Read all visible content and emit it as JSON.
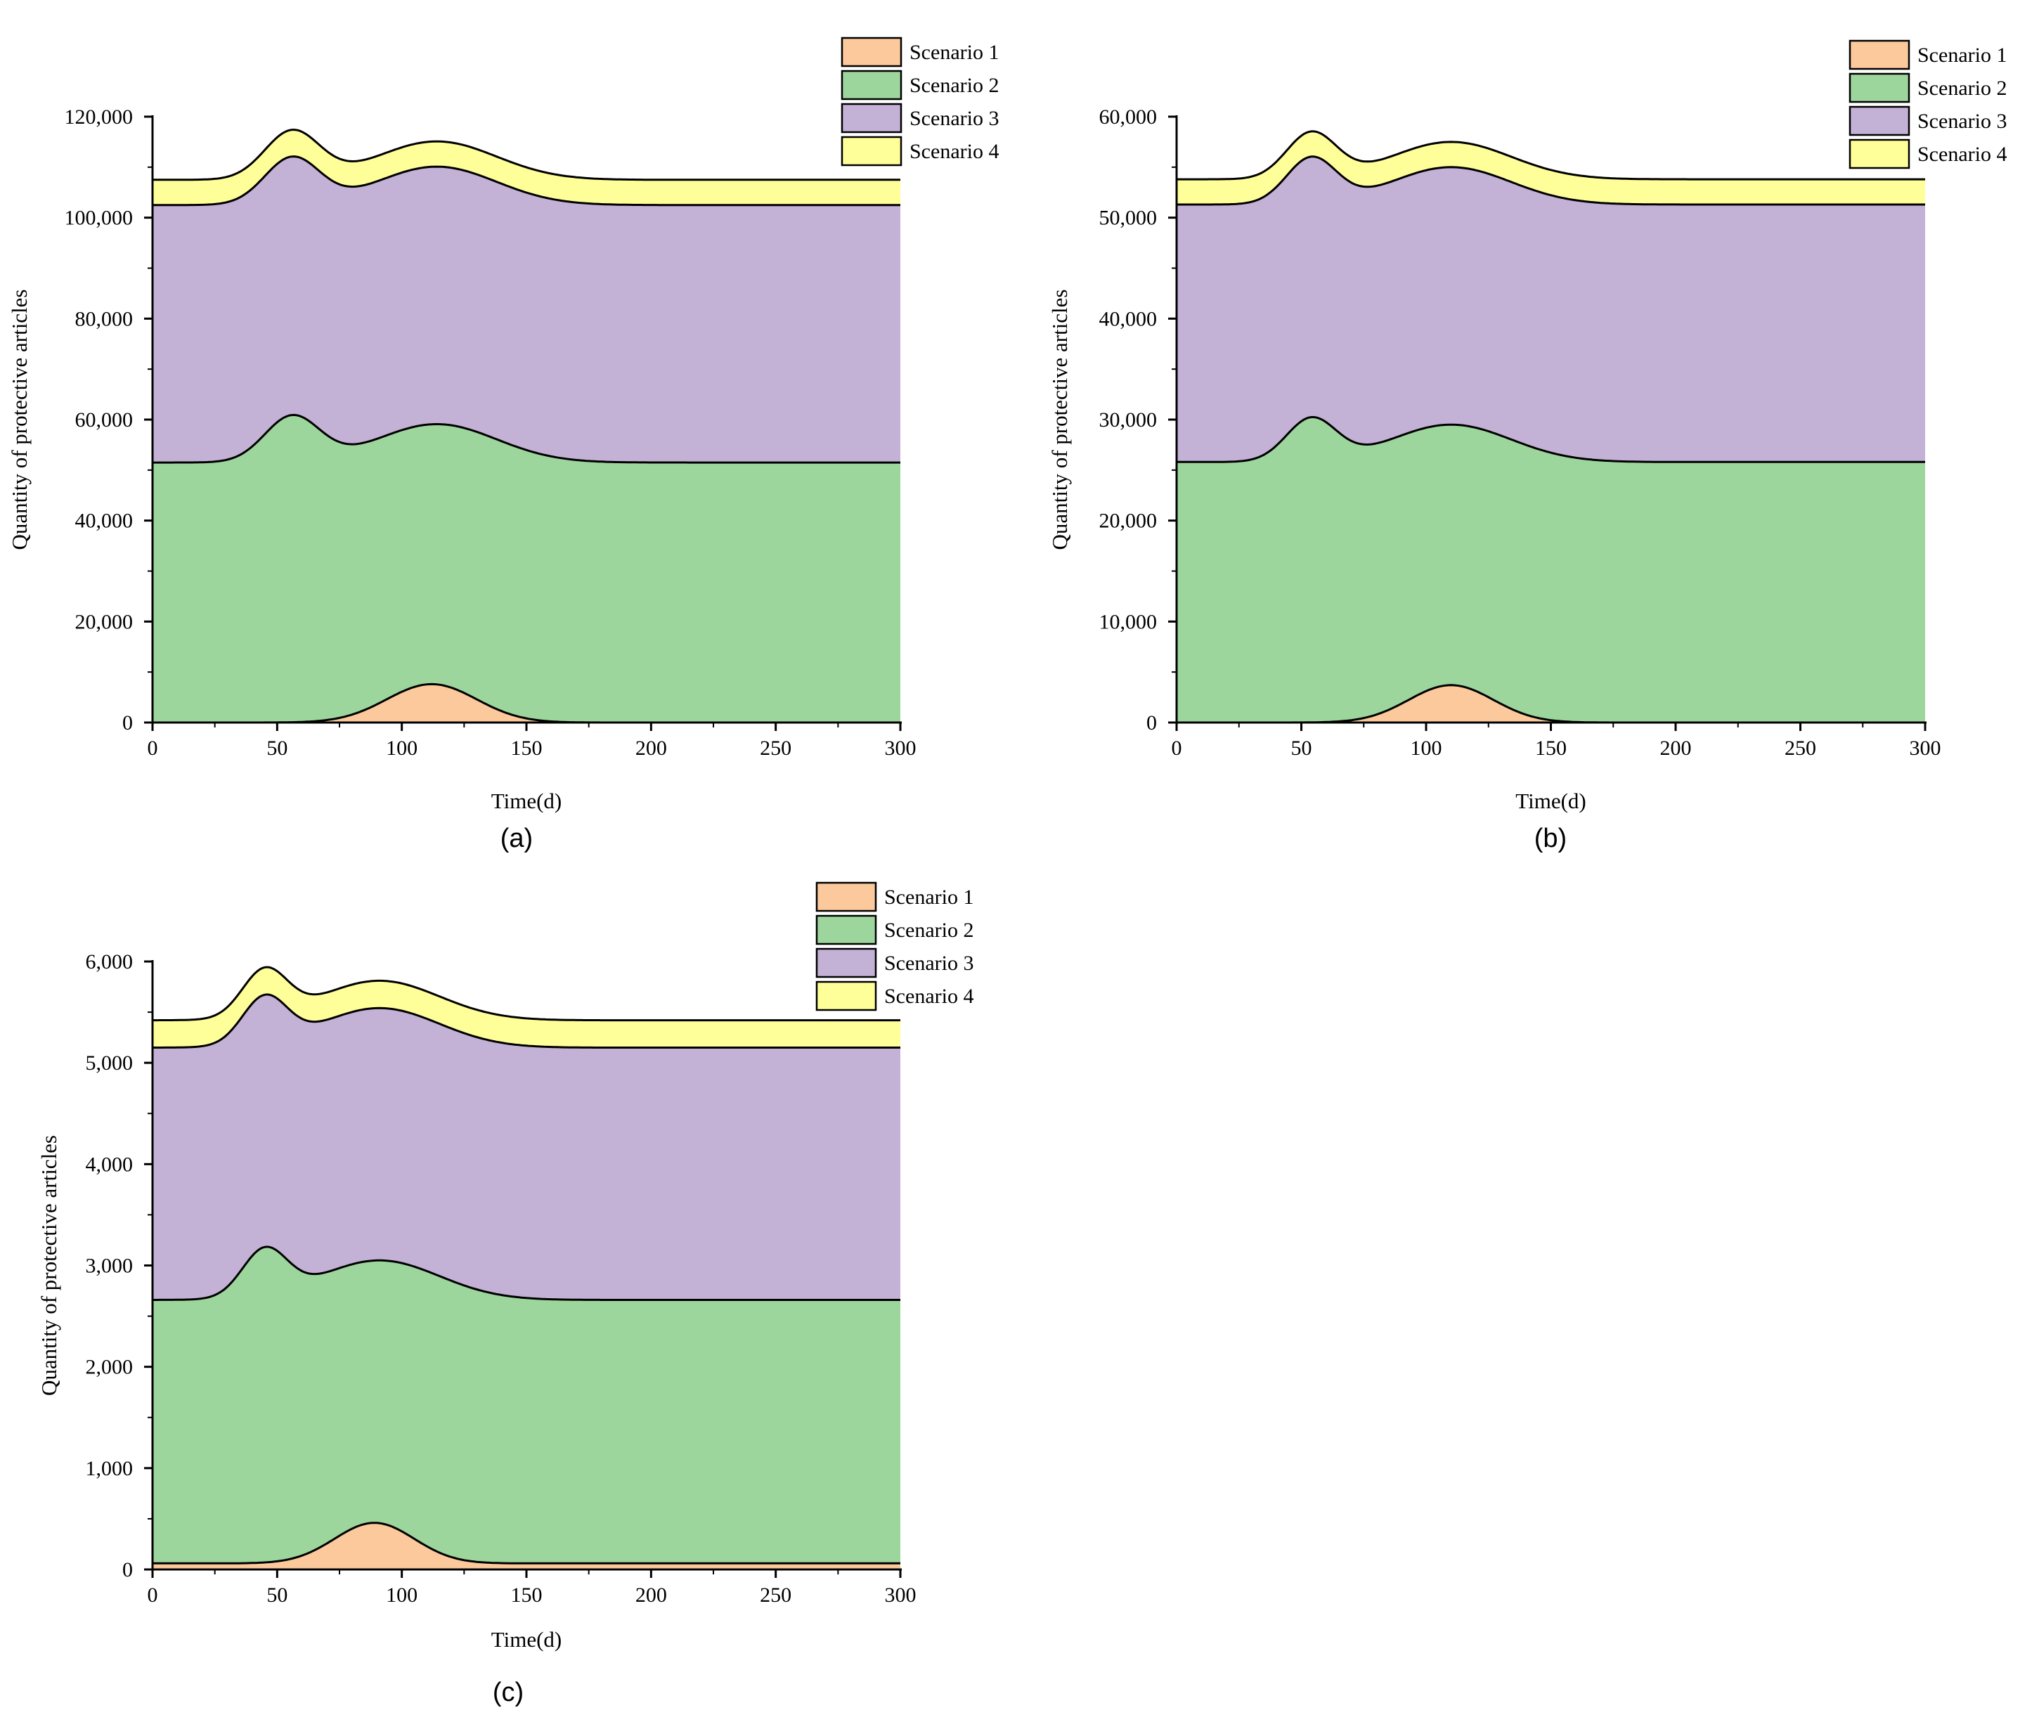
{
  "figure": {
    "series_colors": {
      "Scenario 1": "#fbc99b",
      "Scenario 2": "#9dd69c",
      "Scenario 3": "#c3b1d6",
      "Scenario 4": "#ffff99"
    }
  },
  "chart_data": [
    {
      "type": "area",
      "stacked": true,
      "caption": "(a)",
      "xlabel": "Time(d)",
      "ylabel": "Quantity of protective articles",
      "xlim": [
        0,
        300
      ],
      "ylim": [
        0,
        120000
      ],
      "xticks": [
        0,
        50,
        100,
        150,
        200,
        250,
        300
      ],
      "xtick_labels": [
        "0",
        "50",
        "100",
        "150",
        "200",
        "250",
        "300"
      ],
      "yticks": [
        0,
        20000,
        40000,
        60000,
        80000,
        100000,
        120000
      ],
      "ytick_labels": [
        "0",
        "20,000",
        "40,000",
        "60,000",
        "80,000",
        "100,000",
        "120,000"
      ],
      "legend": [
        "Scenario 1",
        "Scenario 2",
        "Scenario 3",
        "Scenario 4"
      ],
      "legend_position": "top-right",
      "series": [
        {
          "name": "Scenario 1",
          "base": 0,
          "bumps": [
            {
              "center": 112,
              "width": 18,
              "amplitude": 7600
            }
          ]
        },
        {
          "name": "Scenario 2",
          "base": 51500,
          "bumps": [
            {
              "center": 56,
              "width": 11,
              "amplitude": 9000
            },
            {
              "center": 114,
              "width": 24,
              "amplitude": 7600
            }
          ]
        },
        {
          "name": "Scenario 3",
          "base": 102500,
          "bumps": [
            {
              "center": 56,
              "width": 11,
              "amplitude": 9200
            },
            {
              "center": 114,
              "width": 24,
              "amplitude": 7600
            }
          ]
        },
        {
          "name": "Scenario 4",
          "base": 107500,
          "bumps": [
            {
              "center": 56,
              "width": 11,
              "amplitude": 9500
            },
            {
              "center": 114,
              "width": 24,
              "amplitude": 7600
            }
          ]
        }
      ]
    },
    {
      "type": "area",
      "stacked": true,
      "caption": "(b)",
      "xlabel": "Time(d)",
      "ylabel": "Quantity of protective articles",
      "xlim": [
        0,
        300
      ],
      "ylim": [
        0,
        60000
      ],
      "xticks": [
        0,
        50,
        100,
        150,
        200,
        250,
        300
      ],
      "xtick_labels": [
        "0",
        "50",
        "100",
        "150",
        "200",
        "250",
        "300"
      ],
      "yticks": [
        0,
        10000,
        20000,
        30000,
        40000,
        50000,
        60000
      ],
      "ytick_labels": [
        "0",
        "10,000",
        "20,000",
        "30,000",
        "40,000",
        "50,000",
        "60,000"
      ],
      "legend": [
        "Scenario 1",
        "Scenario 2",
        "Scenario 3",
        "Scenario 4"
      ],
      "legend_position": "top-right",
      "series": [
        {
          "name": "Scenario 1",
          "base": 0,
          "bumps": [
            {
              "center": 110,
              "width": 17,
              "amplitude": 3700
            }
          ]
        },
        {
          "name": "Scenario 2",
          "base": 25800,
          "bumps": [
            {
              "center": 54,
              "width": 10,
              "amplitude": 4200
            },
            {
              "center": 110,
              "width": 24,
              "amplitude": 3700
            }
          ]
        },
        {
          "name": "Scenario 3",
          "base": 51300,
          "bumps": [
            {
              "center": 54,
              "width": 10,
              "amplitude": 4500
            },
            {
              "center": 110,
              "width": 24,
              "amplitude": 3700
            }
          ]
        },
        {
          "name": "Scenario 4",
          "base": 53800,
          "bumps": [
            {
              "center": 54,
              "width": 10,
              "amplitude": 4500
            },
            {
              "center": 110,
              "width": 24,
              "amplitude": 3700
            }
          ]
        }
      ]
    },
    {
      "type": "area",
      "stacked": true,
      "caption": "(c)",
      "xlabel": "Time(d)",
      "ylabel": "Quantity of protective articles",
      "xlim": [
        0,
        300
      ],
      "ylim": [
        0,
        6000
      ],
      "xticks": [
        0,
        50,
        100,
        150,
        200,
        250,
        300
      ],
      "xtick_labels": [
        "0",
        "50",
        "100",
        "150",
        "200",
        "250",
        "300"
      ],
      "yticks": [
        0,
        1000,
        2000,
        3000,
        4000,
        5000,
        6000
      ],
      "ytick_labels": [
        "0",
        "1,000",
        "2,000",
        "3,000",
        "4,000",
        "5,000",
        "6,000"
      ],
      "legend": [
        "Scenario 1",
        "Scenario 2",
        "Scenario 3",
        "Scenario 4"
      ],
      "legend_position": "top-right",
      "series": [
        {
          "name": "Scenario 1",
          "base": 60,
          "bumps": [
            {
              "center": 89,
              "width": 16,
              "amplitude": 400
            }
          ]
        },
        {
          "name": "Scenario 2",
          "base": 2660,
          "bumps": [
            {
              "center": 45,
              "width": 9,
              "amplitude": 460
            },
            {
              "center": 91,
              "width": 24,
              "amplitude": 390
            }
          ]
        },
        {
          "name": "Scenario 3",
          "base": 5150,
          "bumps": [
            {
              "center": 45,
              "width": 9,
              "amplitude": 460
            },
            {
              "center": 91,
              "width": 24,
              "amplitude": 390
            }
          ]
        },
        {
          "name": "Scenario 4",
          "base": 5420,
          "bumps": [
            {
              "center": 45,
              "width": 9,
              "amplitude": 460
            },
            {
              "center": 91,
              "width": 24,
              "amplitude": 390
            }
          ]
        }
      ]
    }
  ]
}
